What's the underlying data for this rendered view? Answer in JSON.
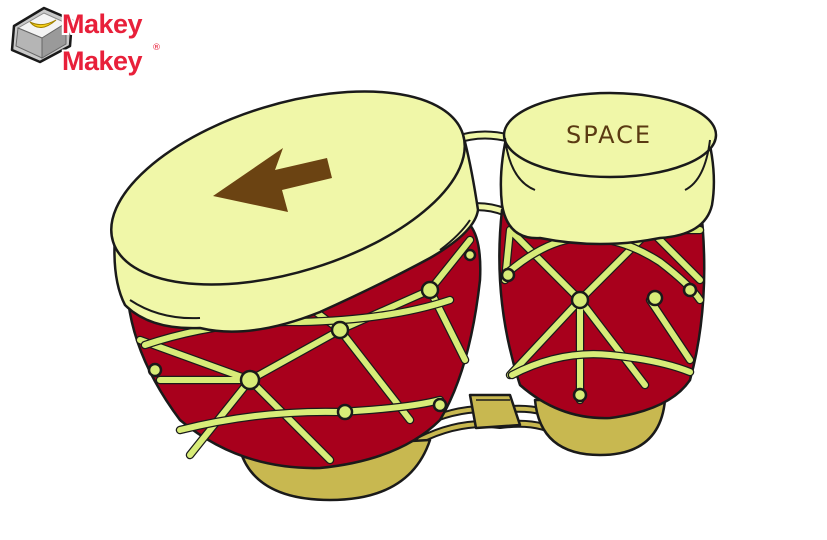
{
  "logo": {
    "line1": "Makey",
    "line2": "Makey",
    "brand_red": "#e8203a",
    "key_icon": "banana-key-icon"
  },
  "drums": {
    "left": {
      "key_icon": "left-arrow-icon",
      "key_label": "left arrow"
    },
    "right": {
      "key_label": "SPACE"
    }
  },
  "colors": {
    "drum_head": "#f0f7a8",
    "drum_body": "#a8001c",
    "net": "#d8ec78",
    "base": "#c8b850",
    "arrow": "#6b4312",
    "outline": "#1a1a1a"
  }
}
